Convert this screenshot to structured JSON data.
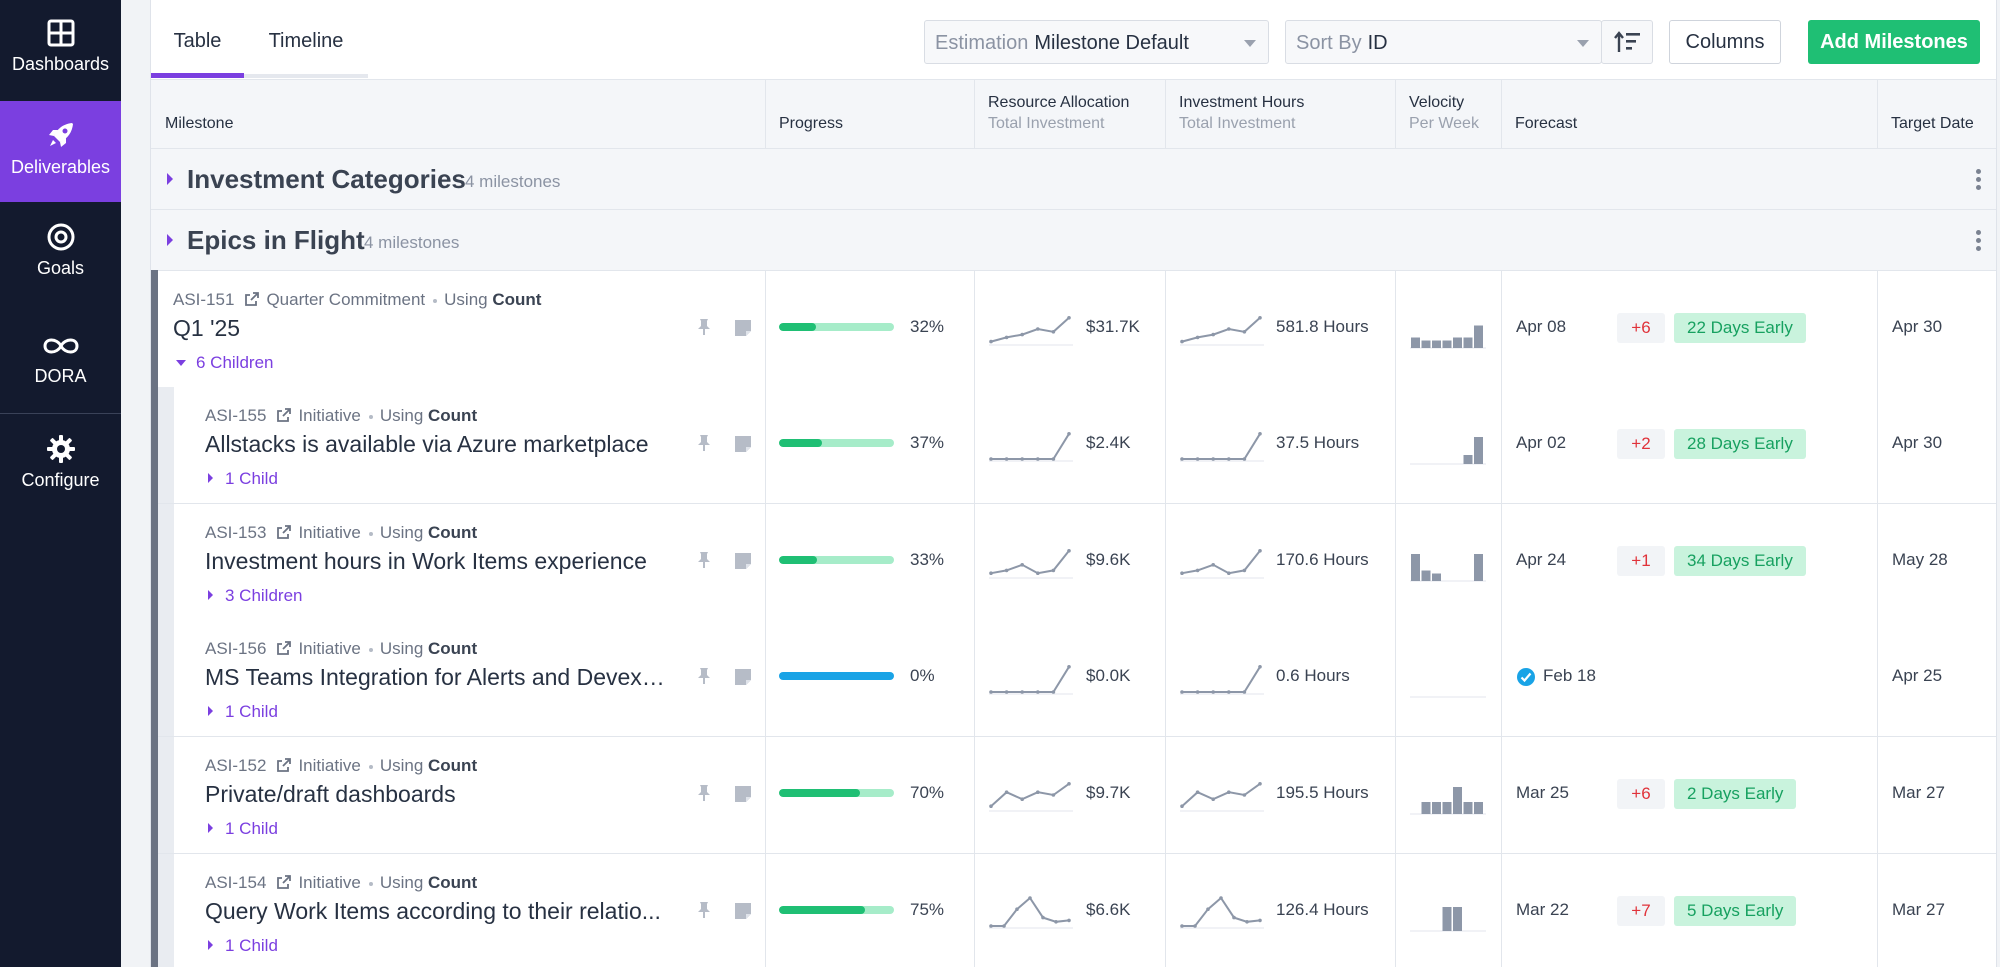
{
  "sidebar": {
    "items": [
      {
        "label": "Dashboards",
        "icon": "dashboards-icon",
        "active": false
      },
      {
        "label": "Deliverables",
        "icon": "rocket-icon",
        "active": true
      },
      {
        "label": "Goals",
        "icon": "target-icon",
        "active": false
      },
      {
        "label": "DORA",
        "icon": "infinity-icon",
        "active": false
      },
      {
        "label": "Configure",
        "icon": "gear-icon",
        "active": false
      }
    ]
  },
  "toolbar": {
    "tabs": [
      "Table",
      "Timeline"
    ],
    "active_tab": "Table",
    "estimation": {
      "label": "Estimation",
      "value": "Milestone Default"
    },
    "sort": {
      "label": "Sort By",
      "value": "ID"
    },
    "columns_label": "Columns",
    "add_label": "Add Milestones"
  },
  "columns": {
    "milestone": "Milestone",
    "progress": "Progress",
    "resource": {
      "title": "Resource Allocation",
      "sub": "Total Investment"
    },
    "hours": {
      "title": "Investment Hours",
      "sub": "Total Investment"
    },
    "velocity": {
      "title": "Velocity",
      "sub": "Per Week"
    },
    "forecast": "Forecast",
    "target": "Target Date"
  },
  "groups": [
    {
      "title": "Investment Categories",
      "count": "4 milestones"
    },
    {
      "title": "Epics in Flight",
      "count": "4 milestones"
    }
  ],
  "rows": [
    {
      "id": "ASI-151",
      "type": "Quarter Commitment",
      "using": "Using",
      "using_value": "Count",
      "title": "Q1 '25",
      "children": "6 Children",
      "progress": 32,
      "progress_text": "32%",
      "money": "$31.7K",
      "hours": "581.8 Hours",
      "forecast": "Apr 08",
      "delta": "+6",
      "early": "22 Days Early",
      "target": "Apr 30",
      "complete": false
    },
    {
      "id": "ASI-155",
      "type": "Initiative",
      "using": "Using",
      "using_value": "Count",
      "title": "Allstacks is available via Azure marketplace",
      "children": "1 Child",
      "progress": 37,
      "progress_text": "37%",
      "money": "$2.4K",
      "hours": "37.5 Hours",
      "forecast": "Apr 02",
      "delta": "+2",
      "early": "28 Days Early",
      "target": "Apr 30",
      "complete": false
    },
    {
      "id": "ASI-153",
      "type": "Initiative",
      "using": "Using",
      "using_value": "Count",
      "title": "Investment hours in Work Items experience",
      "children": "3 Children",
      "progress": 33,
      "progress_text": "33%",
      "money": "$9.6K",
      "hours": "170.6 Hours",
      "forecast": "Apr 24",
      "delta": "+1",
      "early": "34 Days Early",
      "target": "May 28",
      "complete": false
    },
    {
      "id": "ASI-156",
      "type": "Initiative",
      "using": "Using",
      "using_value": "Count",
      "title": "MS Teams Integration for Alerts and Devex ...",
      "children": "1 Child",
      "progress": 0,
      "progress_text": "0%",
      "money": "$0.0K",
      "hours": "0.6 Hours",
      "forecast": "Feb 18",
      "delta": "",
      "early": "",
      "target": "Apr 25",
      "complete": true
    },
    {
      "id": "ASI-152",
      "type": "Initiative",
      "using": "Using",
      "using_value": "Count",
      "title": "Private/draft dashboards",
      "children": "1 Child",
      "progress": 70,
      "progress_text": "70%",
      "money": "$9.7K",
      "hours": "195.5 Hours",
      "forecast": "Mar 25",
      "delta": "+6",
      "early": "2 Days Early",
      "target": "Mar 27",
      "complete": false
    },
    {
      "id": "ASI-154",
      "type": "Initiative",
      "using": "Using",
      "using_value": "Count",
      "title": "Query Work Items according to their relatio...",
      "children": "1 Child",
      "progress": 75,
      "progress_text": "75%",
      "money": "$6.6K",
      "hours": "126.4 Hours",
      "forecast": "Mar 22",
      "delta": "+7",
      "early": "5 Days Early",
      "target": "Mar 27",
      "complete": false
    }
  ],
  "colors": {
    "brand_purple": "#7b3fe0",
    "sidebar_bg": "#131a2e",
    "success_green": "#1fbf74",
    "progress_track": "#a6ecc9",
    "complete_blue": "#19a3e6",
    "delta_red": "#e0323a"
  }
}
